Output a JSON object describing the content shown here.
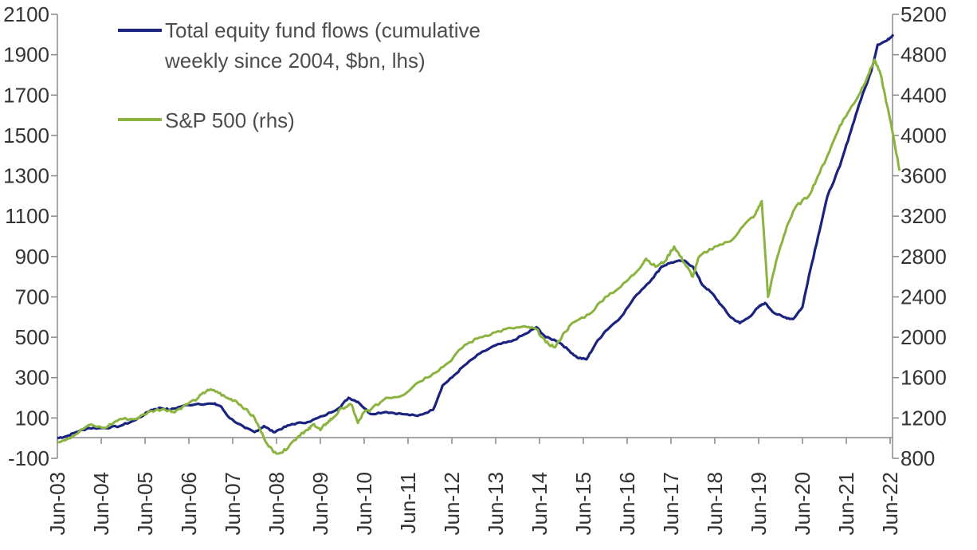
{
  "chart_data": {
    "type": "line",
    "title": "",
    "xlabel": "",
    "ylabel_left": "",
    "ylabel_right": "",
    "x_tick_labels": [
      "Jun-03",
      "Jun-04",
      "Jun-05",
      "Jun-06",
      "Jun-07",
      "Jun-08",
      "Jun-09",
      "Jun-10",
      "Jun-11",
      "Jun-12",
      "Jun-13",
      "Jun-14",
      "Jun-15",
      "Jun-16",
      "Jun-17",
      "Jun-18",
      "Jun-19",
      "Jun-20",
      "Jun-21",
      "Jun-22"
    ],
    "y_left": {
      "tick_labels": [
        "-100",
        "100",
        "300",
        "500",
        "700",
        "900",
        "1100",
        "1300",
        "1500",
        "1700",
        "1900",
        "2100"
      ],
      "tick_values": [
        -100,
        100,
        300,
        500,
        700,
        900,
        1100,
        1300,
        1500,
        1700,
        1900,
        2100
      ],
      "range": [
        -100,
        2100
      ]
    },
    "y_right": {
      "tick_labels": [
        "800",
        "1200",
        "1600",
        "2000",
        "2400",
        "2800",
        "3200",
        "3600",
        "4000",
        "4400",
        "4800",
        "5200"
      ],
      "tick_values": [
        800,
        1200,
        1600,
        2000,
        2400,
        2800,
        3200,
        3600,
        4000,
        4400,
        4800,
        5200
      ],
      "range": [
        800,
        5200
      ]
    },
    "legend_placement": "top-left",
    "grid": false,
    "series": [
      {
        "name": "Total equity fund flows (cumulative weekly since 2004, $bn, lhs)",
        "axis": "left",
        "color": "#1a237e",
        "points": [
          [
            0,
            0
          ],
          [
            0.3,
            10
          ],
          [
            0.6,
            30
          ],
          [
            1,
            50
          ],
          [
            1.5,
            50
          ],
          [
            2,
            60
          ],
          [
            2.5,
            90
          ],
          [
            3,
            140
          ],
          [
            3.3,
            150
          ],
          [
            3.6,
            140
          ],
          [
            4,
            160
          ],
          [
            4.5,
            170
          ],
          [
            5,
            170
          ],
          [
            5.2,
            160
          ],
          [
            5.5,
            100
          ],
          [
            6,
            50
          ],
          [
            6.3,
            30
          ],
          [
            6.6,
            60
          ],
          [
            6.9,
            30
          ],
          [
            7.2,
            50
          ],
          [
            7.5,
            70
          ],
          [
            8,
            80
          ],
          [
            8.5,
            110
          ],
          [
            9,
            150
          ],
          [
            9.3,
            200
          ],
          [
            9.6,
            180
          ],
          [
            10,
            120
          ],
          [
            10.5,
            130
          ],
          [
            11,
            120
          ],
          [
            11.5,
            110
          ],
          [
            12,
            140
          ],
          [
            12.3,
            260
          ],
          [
            12.6,
            300
          ],
          [
            13,
            360
          ],
          [
            13.5,
            420
          ],
          [
            14,
            460
          ],
          [
            14.5,
            480
          ],
          [
            15,
            520
          ],
          [
            15.3,
            550
          ],
          [
            15.6,
            500
          ],
          [
            16,
            480
          ],
          [
            16.3,
            440
          ],
          [
            16.6,
            400
          ],
          [
            16.9,
            390
          ],
          [
            17.2,
            470
          ],
          [
            17.5,
            530
          ],
          [
            18,
            600
          ],
          [
            18.5,
            710
          ],
          [
            19,
            790
          ],
          [
            19.3,
            850
          ],
          [
            19.6,
            870
          ],
          [
            20,
            880
          ],
          [
            20.3,
            850
          ],
          [
            20.6,
            760
          ],
          [
            20.9,
            720
          ],
          [
            21.2,
            660
          ],
          [
            21.5,
            600
          ],
          [
            21.8,
            570
          ],
          [
            22.1,
            600
          ],
          [
            22.4,
            650
          ],
          [
            22.6,
            670
          ],
          [
            22.9,
            620
          ],
          [
            23.2,
            600
          ],
          [
            23.5,
            590
          ],
          [
            23.8,
            650
          ],
          [
            24,
            800
          ],
          [
            24.3,
            1000
          ],
          [
            24.6,
            1200
          ],
          [
            25,
            1350
          ],
          [
            25.3,
            1500
          ],
          [
            25.6,
            1650
          ],
          [
            26,
            1820
          ],
          [
            26.2,
            1950
          ],
          [
            26.5,
            1970
          ],
          [
            26.7,
            2000
          ]
        ]
      },
      {
        "name": "S&P 500 (rhs)",
        "axis": "right",
        "color": "#8bb33f",
        "points": [
          [
            0,
            960
          ],
          [
            0.5,
            1020
          ],
          [
            1,
            1130
          ],
          [
            1.5,
            1100
          ],
          [
            2,
            1190
          ],
          [
            2.5,
            1190
          ],
          [
            3,
            1270
          ],
          [
            3.4,
            1290
          ],
          [
            3.7,
            1260
          ],
          [
            4,
            1310
          ],
          [
            4.5,
            1400
          ],
          [
            4.8,
            1480
          ],
          [
            5.1,
            1460
          ],
          [
            5.4,
            1400
          ],
          [
            5.7,
            1370
          ],
          [
            6,
            1290
          ],
          [
            6.3,
            1200
          ],
          [
            6.6,
            1000
          ],
          [
            6.9,
            860
          ],
          [
            7.2,
            860
          ],
          [
            7.5,
            960
          ],
          [
            7.8,
            1050
          ],
          [
            8,
            1080
          ],
          [
            8.2,
            1140
          ],
          [
            8.4,
            1080
          ],
          [
            8.6,
            1150
          ],
          [
            8.8,
            1200
          ],
          [
            9.1,
            1300
          ],
          [
            9.4,
            1330
          ],
          [
            9.6,
            1150
          ],
          [
            9.8,
            1260
          ],
          [
            10,
            1280
          ],
          [
            10.5,
            1400
          ],
          [
            11,
            1420
          ],
          [
            11.5,
            1550
          ],
          [
            12,
            1640
          ],
          [
            12.5,
            1750
          ],
          [
            13,
            1920
          ],
          [
            13.5,
            2000
          ],
          [
            14,
            2050
          ],
          [
            14.5,
            2090
          ],
          [
            15,
            2100
          ],
          [
            15.3,
            2080
          ],
          [
            15.6,
            1950
          ],
          [
            15.9,
            1900
          ],
          [
            16.2,
            2050
          ],
          [
            16.5,
            2150
          ],
          [
            17,
            2230
          ],
          [
            17.5,
            2400
          ],
          [
            18,
            2500
          ],
          [
            18.5,
            2650
          ],
          [
            18.8,
            2780
          ],
          [
            19.1,
            2700
          ],
          [
            19.4,
            2750
          ],
          [
            19.7,
            2900
          ],
          [
            19.9,
            2800
          ],
          [
            20.1,
            2700
          ],
          [
            20.3,
            2600
          ],
          [
            20.5,
            2800
          ],
          [
            21,
            2900
          ],
          [
            21.5,
            2950
          ],
          [
            21.9,
            3100
          ],
          [
            22.3,
            3220
          ],
          [
            22.5,
            3350
          ],
          [
            22.7,
            2400
          ],
          [
            23,
            2800
          ],
          [
            23.3,
            3100
          ],
          [
            23.6,
            3300
          ],
          [
            24,
            3400
          ],
          [
            24.3,
            3600
          ],
          [
            24.6,
            3800
          ],
          [
            25,
            4100
          ],
          [
            25.3,
            4250
          ],
          [
            25.6,
            4400
          ],
          [
            25.9,
            4600
          ],
          [
            26.1,
            4750
          ],
          [
            26.3,
            4600
          ],
          [
            26.5,
            4300
          ],
          [
            26.7,
            4000
          ],
          [
            26.9,
            3650
          ]
        ]
      }
    ]
  }
}
